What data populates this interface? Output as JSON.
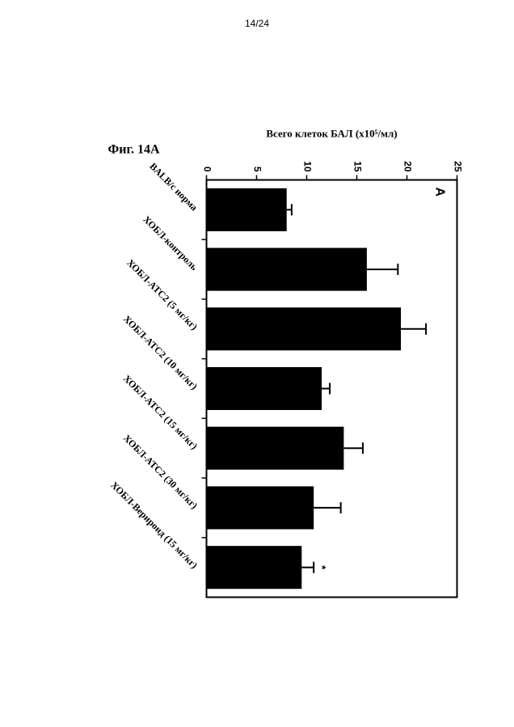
{
  "page": {
    "number": "14/24"
  },
  "figure": {
    "label": "Фиг. 14А",
    "panel": "A"
  },
  "chart_data": {
    "type": "bar",
    "title": "",
    "xlabel": "",
    "ylabel": "Всего клеток БАЛ (x10⁵/мл)",
    "ylim": [
      0,
      25
    ],
    "yticks": [
      "0",
      "5",
      "10",
      "15",
      "20",
      "25"
    ],
    "categories": [
      "BALB/c норма",
      "ХОБЛ-контроль",
      "ХОБЛ-ATC2 (5 мг/кг)",
      "ХОБЛ-ATC2 (10 мг/кг)",
      "ХОБЛ-ATC2 (15 мг/кг)",
      "ХОБЛ-ATC2 (30 мг/кг)",
      "ХОБЛ-Вериронд (15 мг/кг)"
    ],
    "values": [
      8.0,
      16.0,
      19.4,
      11.5,
      13.7,
      10.7,
      9.5
    ],
    "errors": [
      0.5,
      3.1,
      2.5,
      0.8,
      1.9,
      2.7,
      1.2
    ],
    "annotations": [
      "",
      "",
      "",
      "",
      "",
      "",
      "*"
    ],
    "bar_color": "#000000",
    "grid": false,
    "legend": "none",
    "orientation": "rotated-180 vertical bars"
  }
}
